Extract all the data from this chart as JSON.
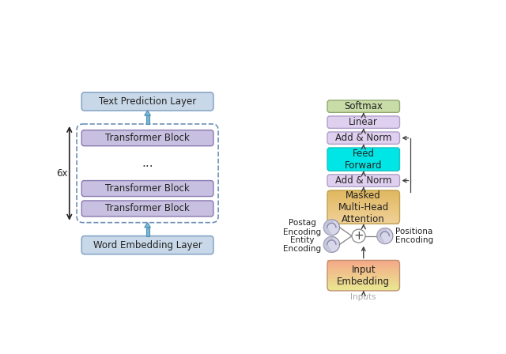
{
  "left_panel": {
    "word_embedding": {
      "label": "Word Embedding Layer",
      "color": "#c8d8e8",
      "edge_color": "#8aa8c8"
    },
    "transformer_blocks": [
      {
        "label": "Transformer Block",
        "color": "#c8c0e0",
        "edge_color": "#8878b0"
      },
      {
        "label": "Transformer Block",
        "color": "#c8c0e0",
        "edge_color": "#8878b0"
      },
      {
        "label": "Transformer Block",
        "color": "#c8c0e0",
        "edge_color": "#8878b0"
      }
    ],
    "text_prediction": {
      "label": "Text Prediction Layer",
      "color": "#c8d8e8",
      "edge_color": "#8aa8c8"
    },
    "repeat_label": "6x",
    "dots": "..."
  },
  "right_panel": {
    "inputs_label": "Inputs",
    "input_embedding": {
      "label": "Input\nEmbedding"
    },
    "masked_attention": {
      "label": "Masked\nMulti-Head\nAttention"
    },
    "add_norm1": {
      "label": "Add & Norm",
      "color": "#e0d0f0"
    },
    "feed_forward": {
      "label": "Feed\nForward",
      "color": "#00e5e5"
    },
    "add_norm2": {
      "label": "Add & Norm",
      "color": "#e0d0f0"
    },
    "linear": {
      "label": "Linear",
      "color": "#e0d0f0"
    },
    "softmax": {
      "label": "Softmax",
      "color": "#c8dca8"
    },
    "postag_label": "Postag\nEncoding",
    "entity_label": "Entity\nEncoding",
    "positional_label": "Positiona\nEncoding"
  },
  "figure_bg": "#ffffff"
}
